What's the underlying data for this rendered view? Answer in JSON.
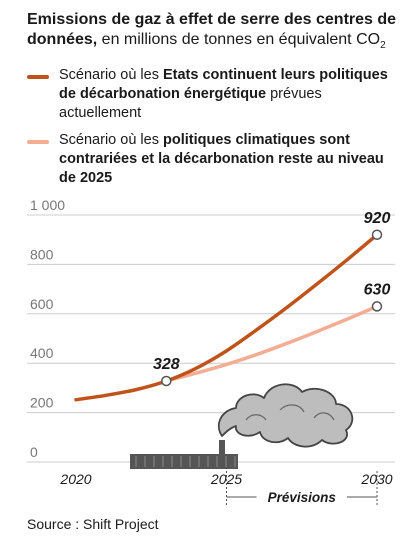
{
  "title": {
    "bold": "Emissions de gaz à effet de serre des centres de données,",
    "rest": " en millions de tonnes en équivalent CO",
    "sub": "2"
  },
  "legend": [
    {
      "plain": "Scénario où les ",
      "bold": "Etats continuent leurs politiques de décarbonation énergétique",
      "tail": " prévues actuellement",
      "color": "#c0531c"
    },
    {
      "plain": "Scénario où les ",
      "bold": "politiques climatiques sont contrariées et la décarbonation reste au niveau de 2025",
      "tail": "",
      "color": "#f4ad92"
    }
  ],
  "source": "Source : Shift Project",
  "colors": {
    "grid": "#cccccc",
    "factory": "#555555",
    "smoke": "#bdbdbd"
  },
  "chart_data": {
    "type": "line",
    "xlim": [
      2019,
      2031
    ],
    "ylim": [
      0,
      1000
    ],
    "yticks": [
      0,
      200,
      400,
      600,
      800,
      1000
    ],
    "ytick_labels": [
      "0",
      "200",
      "400",
      "600",
      "800",
      "1 000"
    ],
    "xticks": [
      2020,
      2025,
      2030
    ],
    "xtick_labels": [
      "2020",
      "2025",
      "2030"
    ],
    "forecast_label": "Prévisions",
    "forecast_range": [
      2025,
      2030
    ],
    "series": [
      {
        "color": "#c0531c",
        "x": [
          2020,
          2021,
          2022,
          2023,
          2024,
          2025,
          2026,
          2027,
          2028,
          2029,
          2030
        ],
        "y": [
          252,
          270,
          293,
          328,
          380,
          450,
          535,
          625,
          720,
          818,
          920
        ]
      },
      {
        "color": "#f4ad92",
        "x": [
          2023,
          2024,
          2025,
          2026,
          2027,
          2028,
          2029,
          2030
        ],
        "y": [
          328,
          360,
          395,
          435,
          480,
          528,
          578,
          630
        ]
      }
    ],
    "annotations": [
      {
        "x": 2023,
        "y": 328,
        "label": "328"
      },
      {
        "x": 2030,
        "y": 920,
        "label": "920"
      },
      {
        "x": 2030,
        "y": 630,
        "label": "630"
      }
    ]
  }
}
